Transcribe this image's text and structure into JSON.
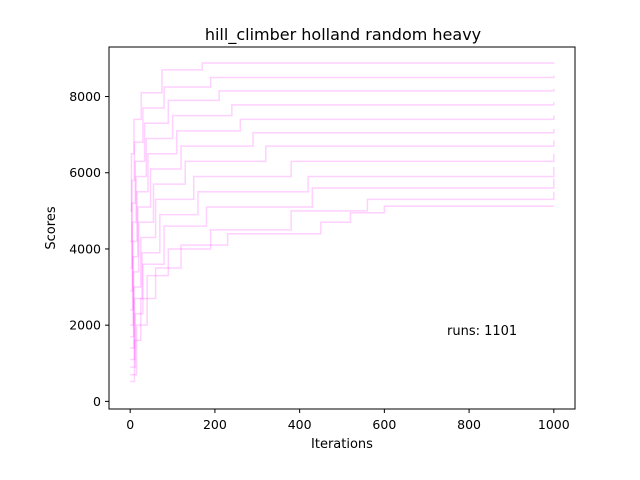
{
  "chart_data": {
    "type": "line",
    "title": "hill_climber holland random heavy",
    "xlabel": "Iterations",
    "ylabel": "Scores",
    "xlim": [
      -50,
      1050
    ],
    "ylim": [
      -200,
      9300
    ],
    "xticks": [
      0,
      200,
      400,
      600,
      800,
      1000
    ],
    "yticks": [
      0,
      2000,
      4000,
      6000,
      8000
    ],
    "xtick_labels": [
      "0",
      "200",
      "400",
      "600",
      "800",
      "1000"
    ],
    "ytick_labels": [
      "0",
      "2000",
      "4000",
      "6000",
      "8000"
    ],
    "grid": false,
    "legend": "none",
    "annotation": "runs: 1101",
    "color": "#ff00ff",
    "series_alpha": 0.18,
    "run_count": 1101,
    "iterations": 1000,
    "final_score_levels": [
      5120,
      5500,
      5850,
      6150,
      6500,
      6850,
      7150,
      7500,
      7850,
      8200,
      8550,
      8900
    ],
    "series": [
      {
        "values": [
          [
            0,
            520
          ],
          [
            10,
            1600
          ],
          [
            25,
            2700
          ],
          [
            60,
            3500
          ],
          [
            120,
            4100
          ],
          [
            230,
            4400
          ],
          [
            450,
            4700
          ],
          [
            520,
            4950
          ],
          [
            600,
            5120
          ],
          [
            1000,
            5120
          ]
        ]
      },
      {
        "values": [
          [
            0,
            700
          ],
          [
            15,
            2000
          ],
          [
            40,
            3300
          ],
          [
            90,
            4000
          ],
          [
            190,
            4500
          ],
          [
            380,
            5000
          ],
          [
            560,
            5300
          ],
          [
            1000,
            5500
          ]
        ]
      },
      {
        "values": [
          [
            0,
            900
          ],
          [
            12,
            2300
          ],
          [
            30,
            3600
          ],
          [
            80,
            4600
          ],
          [
            180,
            5100
          ],
          [
            430,
            5600
          ],
          [
            1000,
            5850
          ]
        ]
      },
      {
        "values": [
          [
            0,
            1100
          ],
          [
            10,
            2700
          ],
          [
            28,
            3900
          ],
          [
            70,
            4900
          ],
          [
            160,
            5500
          ],
          [
            420,
            5900
          ],
          [
            1000,
            6150
          ]
        ]
      },
      {
        "values": [
          [
            0,
            1400
          ],
          [
            9,
            3000
          ],
          [
            25,
            4300
          ],
          [
            60,
            5300
          ],
          [
            150,
            5900
          ],
          [
            380,
            6300
          ],
          [
            1000,
            6500
          ]
        ]
      },
      {
        "values": [
          [
            0,
            1700
          ],
          [
            8,
            3400
          ],
          [
            20,
            4700
          ],
          [
            55,
            5700
          ],
          [
            130,
            6300
          ],
          [
            320,
            6700
          ],
          [
            1000,
            6850
          ]
        ]
      },
      {
        "values": [
          [
            0,
            2000
          ],
          [
            7,
            3800
          ],
          [
            18,
            5100
          ],
          [
            48,
            6100
          ],
          [
            120,
            6700
          ],
          [
            290,
            7050
          ],
          [
            1000,
            7150
          ]
        ]
      },
      {
        "values": [
          [
            0,
            2400
          ],
          [
            6,
            4200
          ],
          [
            16,
            5500
          ],
          [
            42,
            6500
          ],
          [
            110,
            7100
          ],
          [
            260,
            7400
          ],
          [
            1000,
            7500
          ]
        ]
      },
      {
        "values": [
          [
            0,
            2900
          ],
          [
            5,
            4700
          ],
          [
            14,
            5900
          ],
          [
            38,
            6900
          ],
          [
            100,
            7500
          ],
          [
            240,
            7780
          ],
          [
            1000,
            7850
          ]
        ]
      },
      {
        "values": [
          [
            0,
            3500
          ],
          [
            4,
            5200
          ],
          [
            12,
            6300
          ],
          [
            34,
            7300
          ],
          [
            90,
            7900
          ],
          [
            210,
            8150
          ],
          [
            1000,
            8200
          ]
        ]
      },
      {
        "values": [
          [
            0,
            4200
          ],
          [
            4,
            5800
          ],
          [
            10,
            6800
          ],
          [
            30,
            7700
          ],
          [
            80,
            8250
          ],
          [
            190,
            8500
          ],
          [
            1000,
            8550
          ]
        ]
      },
      {
        "values": [
          [
            0,
            5000
          ],
          [
            3,
            6500
          ],
          [
            9,
            7400
          ],
          [
            26,
            8100
          ],
          [
            75,
            8700
          ],
          [
            170,
            8880
          ],
          [
            1000,
            8900
          ]
        ]
      }
    ]
  }
}
